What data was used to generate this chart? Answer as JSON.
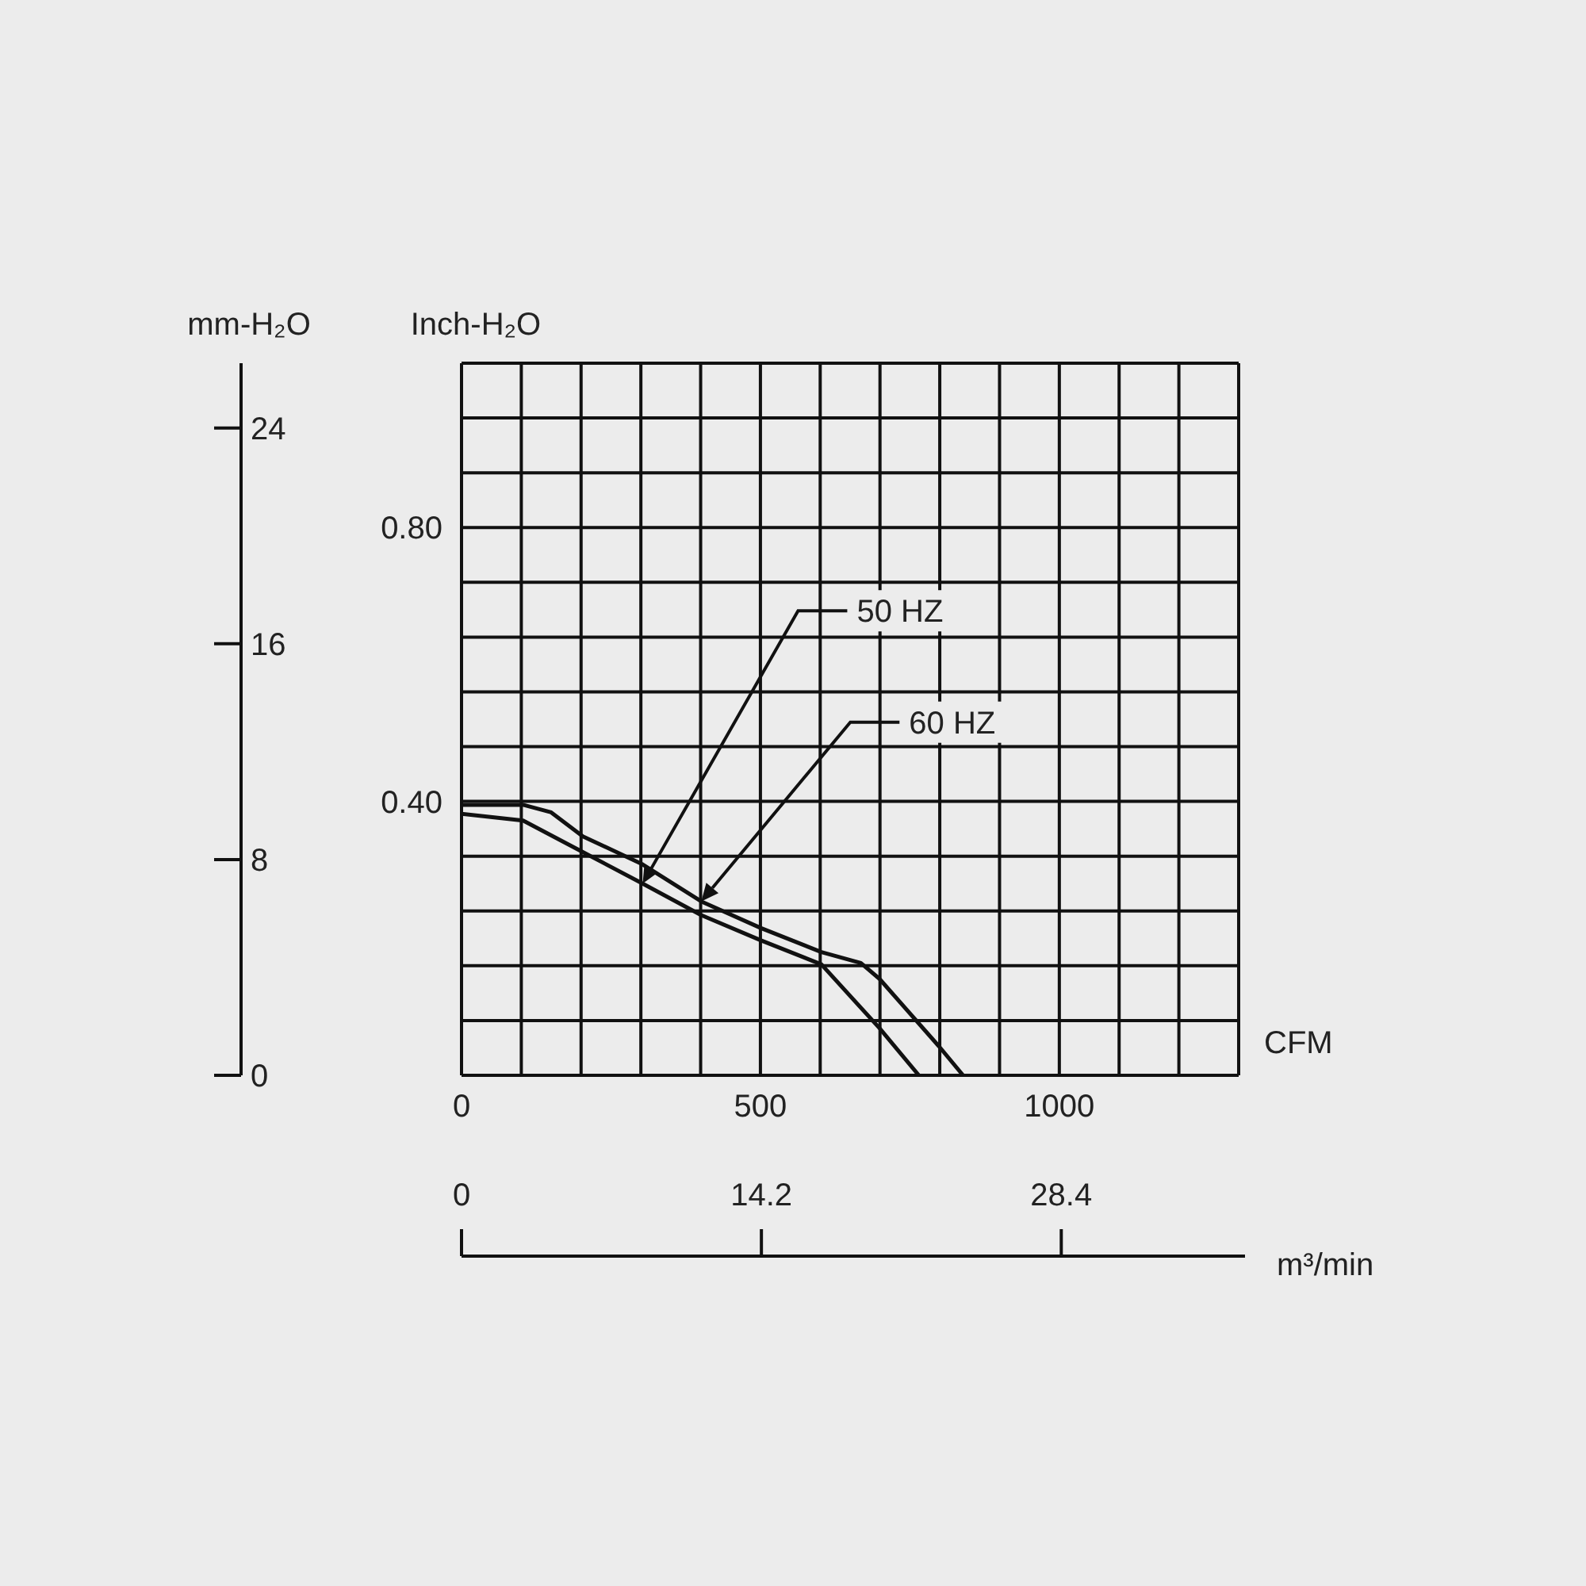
{
  "chart_data": {
    "type": "line",
    "xlabel": "CFM",
    "ylabel": "Inch-H₂O",
    "y2label": "mm-H₂O",
    "x2label": "m³/min",
    "series": [
      {
        "name": "50 HZ",
        "color": "#111111",
        "x": [
          0,
          103,
          203,
          303,
          401,
          501,
          602,
          699,
          765
        ],
        "values": [
          0.382,
          0.372,
          0.326,
          0.28,
          0.234,
          0.197,
          0.162,
          0.069,
          0
        ]
      },
      {
        "name": "60 HZ",
        "color": "#111111",
        "x": [
          0,
          103,
          150,
          203,
          303,
          401,
          501,
          602,
          668,
          699,
          799,
          839
        ],
        "values": [
          0.395,
          0.395,
          0.384,
          0.349,
          0.308,
          0.254,
          0.215,
          0.18,
          0.164,
          0.141,
          0.042,
          0
        ]
      }
    ],
    "xlim": [
      0,
      1300
    ],
    "xticks": [
      0,
      {
        "value": 100,
        "label": null
      },
      {
        "value": 200,
        "label": null
      },
      {
        "value": 300,
        "label": null
      },
      {
        "value": 400,
        "label": null
      },
      500,
      {
        "value": 600,
        "label": null
      },
      {
        "value": 700,
        "label": null
      },
      {
        "value": 800,
        "label": null
      },
      {
        "value": 900,
        "label": null
      },
      1000,
      {
        "value": 1100,
        "label": null
      },
      {
        "value": 1200,
        "label": null
      },
      {
        "value": 1300,
        "label": null
      }
    ],
    "ylim": [
      0,
      1.04
    ],
    "yticks": [
      {
        "value": 0,
        "label": null
      },
      {
        "value": 0.08,
        "label": null
      },
      {
        "value": 0.16,
        "label": null
      },
      {
        "value": 0.24,
        "label": null
      },
      {
        "value": 0.32,
        "label": null
      },
      {
        "value": 0.4,
        "label": "0.40"
      },
      {
        "value": 0.48,
        "label": null
      },
      {
        "value": 0.56,
        "label": null
      },
      {
        "value": 0.64,
        "label": null
      },
      {
        "value": 0.72,
        "label": null
      },
      {
        "value": 0.8,
        "label": "0.80"
      },
      {
        "value": 0.88,
        "label": null
      },
      {
        "value": 0.96,
        "label": null
      },
      {
        "value": 1.04,
        "label": null
      }
    ],
    "y2lim": [
      0,
      26.4
    ],
    "y2ticks": [
      0,
      8,
      16,
      24
    ],
    "x2lim": [
      0,
      36.8
    ],
    "x2ticks": [
      0,
      14.2,
      28.4
    ],
    "grid": true
  }
}
